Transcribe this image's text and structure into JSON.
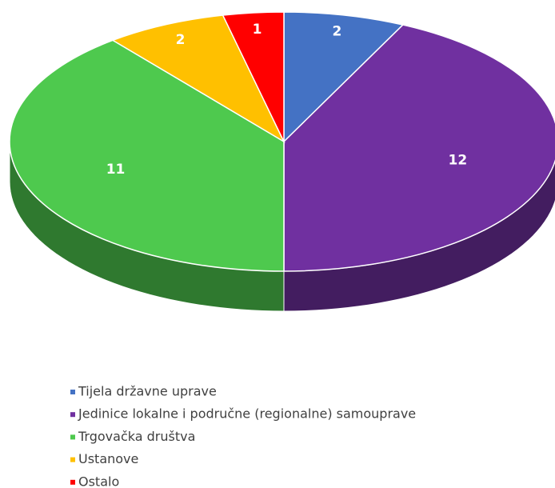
{
  "chart_data": {
    "type": "pie",
    "categories": [
      "Tijela državne uprave",
      "Jedinice lokalne i područne (regionalne) samouprave",
      "Trgovačka društva",
      "Ustanove",
      "Ostalo"
    ],
    "values": [
      2,
      12,
      11,
      2,
      1
    ],
    "colors": [
      "#4472c4",
      "#7030a0",
      "#4ec94e",
      "#ffc000",
      "#ff0000"
    ],
    "legend": "bottom"
  }
}
